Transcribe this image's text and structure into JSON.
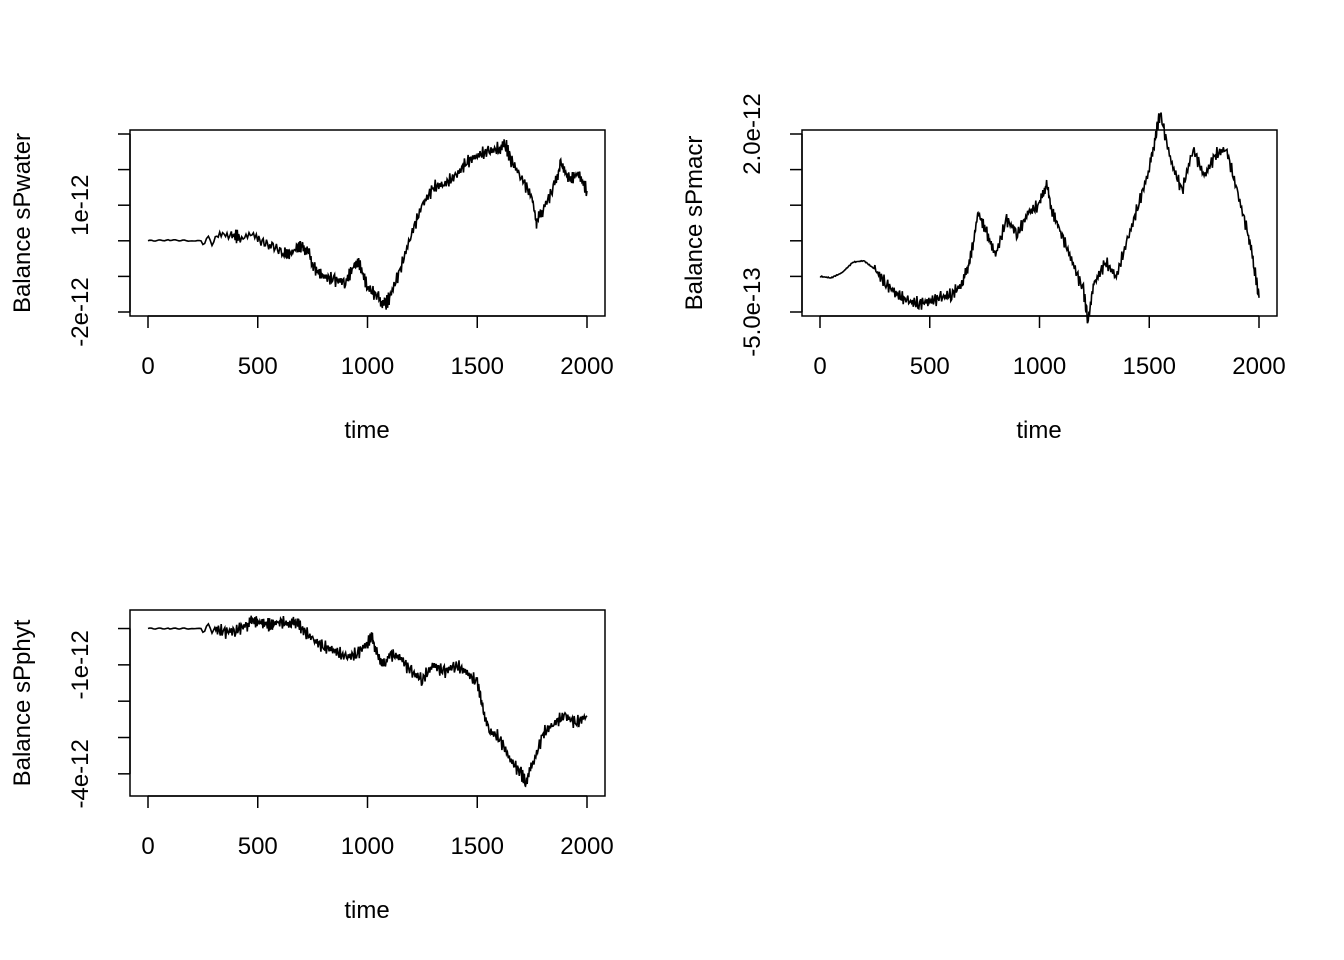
{
  "chart_data": [
    {
      "type": "line",
      "xlabel": "time",
      "ylabel": "Balance sPwater",
      "xlim": [
        0,
        2000
      ],
      "ylim": [
        -2e-12,
        3e-12
      ],
      "xticks": [
        0,
        500,
        1000,
        1500,
        2000
      ],
      "xtick_labels": [
        "0",
        "500",
        "1000",
        "1500",
        "2000"
      ],
      "yticks": [
        -2e-12,
        -1e-12,
        0,
        1e-12,
        2e-12,
        3e-12
      ],
      "ytick_labels": [
        "-2e-12",
        "",
        "",
        "1e-12",
        "",
        ""
      ],
      "series": [
        {
          "x": [
            0,
            100,
            200,
            300,
            380,
            420,
            500,
            560,
            620,
            640,
            680,
            700,
            730,
            760,
            800,
            850,
            900,
            940,
            960,
            1000,
            1050,
            1080,
            1100,
            1150,
            1200,
            1250,
            1300,
            1350,
            1400,
            1450,
            1500,
            1550,
            1600,
            1630,
            1650,
            1700,
            1750,
            1770,
            1800,
            1850,
            1880,
            1920,
            1960,
            2000
          ],
          "y": [
            0,
            2e-14,
            0,
            0,
            1.5e-13,
            1.2e-13,
            2e-14,
            -1e-13,
            -3e-13,
            -4e-13,
            -2e-13,
            -1.5e-13,
            -3e-13,
            -8e-13,
            -1e-12,
            -1.1e-12,
            -1.15e-12,
            -7e-13,
            -6e-13,
            -1.3e-12,
            -1.6e-12,
            -1.8e-12,
            -1.6e-12,
            -8e-13,
            2e-13,
            1e-12,
            1.5e-12,
            1.6e-12,
            1.8e-12,
            2.2e-12,
            2.4e-12,
            2.5e-12,
            2.6e-12,
            2.7e-12,
            2.3e-12,
            1.8e-12,
            1.2e-12,
            5e-13,
            9e-13,
            1.5e-12,
            2.2e-12,
            1.7e-12,
            1.9e-12,
            1.4e-12
          ]
        }
      ]
    },
    {
      "type": "line",
      "xlabel": "time",
      "ylabel": "Balance sPmacr",
      "xlim": [
        0,
        2000
      ],
      "ylim": [
        -5e-13,
        2e-12
      ],
      "xticks": [
        0,
        500,
        1000,
        1500,
        2000
      ],
      "xtick_labels": [
        "0",
        "500",
        "1000",
        "1500",
        "2000"
      ],
      "yticks": [
        -5e-13,
        0,
        5e-13,
        1e-12,
        1.5e-12,
        2e-12
      ],
      "ytick_labels": [
        "-5.0e-13",
        "",
        "",
        "",
        "",
        "2.0e-12"
      ],
      "series": [
        {
          "x": [
            0,
            50,
            100,
            150,
            200,
            250,
            300,
            350,
            400,
            450,
            500,
            550,
            600,
            650,
            680,
            700,
            720,
            760,
            800,
            850,
            900,
            950,
            1000,
            1030,
            1060,
            1100,
            1150,
            1200,
            1220,
            1250,
            1300,
            1350,
            1400,
            1450,
            1500,
            1530,
            1550,
            1600,
            1650,
            1700,
            1750,
            1800,
            1850,
            1900,
            1950,
            1980,
            2000
          ],
          "y": [
            0,
            -2e-14,
            5e-14,
            2e-13,
            2.2e-13,
            1e-13,
            -1e-13,
            -2.5e-13,
            -3.5e-13,
            -3.8e-13,
            -3.5e-13,
            -3e-13,
            -2.5e-13,
            -1e-13,
            2e-13,
            5e-13,
            9e-13,
            6e-13,
            3e-13,
            8e-13,
            6e-13,
            9e-13,
            1e-12,
            1.3e-12,
            9e-13,
            6e-13,
            2e-13,
            -2e-13,
            -6e-13,
            -1e-13,
            2e-13,
            0,
            5e-13,
            1e-12,
            1.5e-12,
            2e-12,
            2.3e-12,
            1.6e-12,
            1.2e-12,
            1.8e-12,
            1.4e-12,
            1.7e-12,
            1.8e-12,
            1.2e-12,
            6e-13,
            1e-13,
            -3e-13
          ]
        }
      ]
    },
    {
      "type": "line",
      "xlabel": "time",
      "ylabel": "Balance sPphyt",
      "xlim": [
        0,
        2000
      ],
      "ylim": [
        -4.5e-12,
        4e-13
      ],
      "xticks": [
        0,
        500,
        1000,
        1500,
        2000
      ],
      "xtick_labels": [
        "0",
        "500",
        "1000",
        "1500",
        "2000"
      ],
      "yticks": [
        -4e-12,
        -3e-12,
        -2e-12,
        -1e-12,
        0
      ],
      "ytick_labels": [
        "-4e-12",
        "",
        "",
        "-1e-12",
        ""
      ],
      "series": [
        {
          "x": [
            0,
            100,
            200,
            300,
            350,
            400,
            450,
            480,
            520,
            560,
            600,
            650,
            680,
            700,
            750,
            800,
            850,
            900,
            950,
            1000,
            1020,
            1050,
            1080,
            1100,
            1150,
            1200,
            1250,
            1300,
            1350,
            1400,
            1450,
            1500,
            1520,
            1550,
            1600,
            1650,
            1700,
            1720,
            1750,
            1800,
            1850,
            1900,
            1950,
            2000
          ],
          "y": [
            0,
            0,
            0,
            0,
            -1e-13,
            -5e-14,
            1e-13,
            2e-13,
            1.5e-13,
            1e-13,
            2e-13,
            1e-13,
            2e-13,
            0,
            -3e-13,
            -5e-13,
            -6e-13,
            -8e-13,
            -7e-13,
            -4e-13,
            -2e-13,
            -8e-13,
            -1e-12,
            -7e-13,
            -8e-13,
            -1.2e-12,
            -1.4e-12,
            -1e-12,
            -1.2e-12,
            -1e-12,
            -1.2e-12,
            -1.5e-12,
            -2e-12,
            -2.8e-12,
            -3e-12,
            -3.6e-12,
            -4e-12,
            -4.2e-12,
            -3.8e-12,
            -2.9e-12,
            -2.6e-12,
            -2.4e-12,
            -2.6e-12,
            -2.4e-12
          ]
        }
      ]
    }
  ]
}
